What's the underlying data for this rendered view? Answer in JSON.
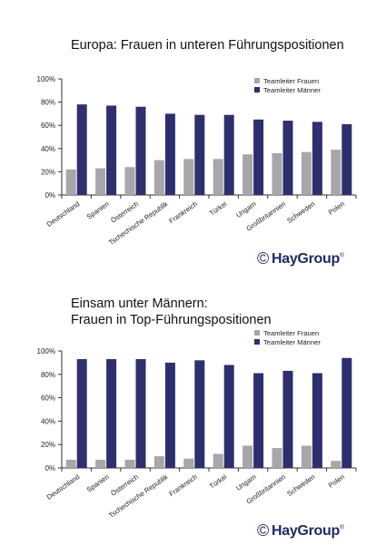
{
  "colors": {
    "frauen": "#a7a7a9",
    "maenner": "#2e2f6e",
    "axis": "#333333",
    "logo": "#1e2a5e"
  },
  "charts": [
    {
      "title_lines": [
        "Europa: Frauen in unteren Führungspositionen"
      ],
      "logo": {
        "symbol": "©",
        "text": "HayGroup",
        "reg": "®"
      }
    },
    {
      "title_lines": [
        "Einsam unter Männern:",
        "Frauen in Top-Führungspositionen"
      ],
      "logo": {
        "symbol": "©",
        "text": "HayGroup",
        "reg": "®"
      }
    }
  ],
  "chart_data": [
    {
      "type": "bar",
      "title": "Europa: Frauen in unteren Führungspositionen",
      "categories": [
        "Deutschland",
        "Spanien",
        "Österreich",
        "Tschechische Republik",
        "Frankreich",
        "Türkei",
        "Ungarn",
        "Großbritannien",
        "Schweden",
        "Polen"
      ],
      "series": [
        {
          "name": "Teamleiter Frauen",
          "values": [
            22,
            23,
            24,
            30,
            31,
            31,
            35,
            36,
            37,
            39
          ]
        },
        {
          "name": "Teamleiter Männer",
          "values": [
            78,
            77,
            76,
            70,
            69,
            69,
            65,
            64,
            63,
            61
          ]
        }
      ],
      "ylim": [
        0,
        100
      ],
      "yticks": [
        "0%",
        "20%",
        "40%",
        "60%",
        "80%",
        "100%"
      ],
      "grid": false,
      "legend": "top-right"
    },
    {
      "type": "bar",
      "title": "Einsam unter Männern: Frauen in Top-Führungspositionen",
      "categories": [
        "Deutschland",
        "Spanien",
        "Österreich",
        "Tschechische Republik",
        "Frankreich",
        "Türkei",
        "Ungarn",
        "Großbritannien",
        "Schweden",
        "Polen"
      ],
      "series": [
        {
          "name": "Teamleiter Frauen",
          "values": [
            7,
            7,
            7,
            10,
            8,
            12,
            19,
            17,
            19,
            6
          ]
        },
        {
          "name": "Teamleiter Männer",
          "values": [
            93,
            93,
            93,
            90,
            92,
            88,
            81,
            83,
            81,
            94
          ]
        }
      ],
      "ylim": [
        0,
        100
      ],
      "yticks": [
        "0%",
        "20%",
        "40%",
        "60%",
        "80%",
        "100%"
      ],
      "grid": false,
      "legend": "top-right"
    }
  ]
}
